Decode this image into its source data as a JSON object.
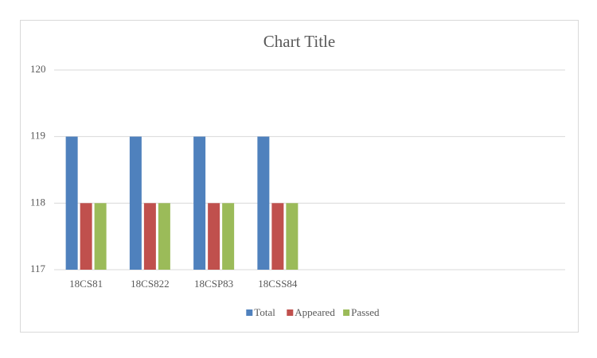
{
  "chart_data": {
    "type": "bar",
    "title": "Chart Title",
    "categories": [
      "18CS81",
      "18CS822",
      "18CSP83",
      "18CSS84",
      null,
      null,
      null,
      null
    ],
    "series": [
      {
        "name": "Total",
        "color": "#4f81bd",
        "values": [
          119,
          119,
          119,
          119,
          null,
          null,
          null,
          null
        ]
      },
      {
        "name": "Appeared",
        "color": "#c0504d",
        "values": [
          118,
          118,
          118,
          118,
          null,
          null,
          null,
          null
        ]
      },
      {
        "name": "Passed",
        "color": "#9bbb59",
        "values": [
          118,
          118,
          118,
          118,
          null,
          null,
          null,
          null
        ]
      }
    ],
    "ylim": [
      117,
      120
    ],
    "yticks": [
      117,
      118,
      119,
      120
    ],
    "grid": true,
    "legend": "bottom"
  }
}
